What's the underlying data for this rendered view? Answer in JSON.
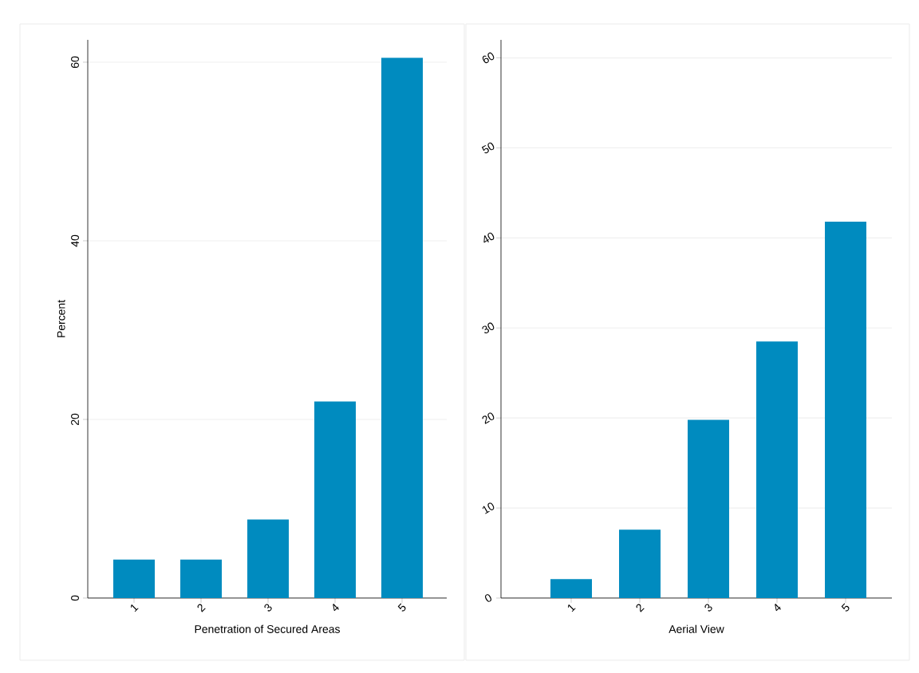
{
  "chart_data": [
    {
      "type": "bar",
      "xlabel": "Penetration of Secured Areas",
      "ylabel": "Percent",
      "categories": [
        "1",
        "2",
        "3",
        "4",
        "5"
      ],
      "values": [
        4.3,
        4.3,
        8.8,
        22.0,
        60.5
      ],
      "color": "#008bbf",
      "ylim": [
        0,
        62.5
      ],
      "yticks": [
        0,
        20,
        40,
        60
      ],
      "grid": "y"
    },
    {
      "type": "bar",
      "xlabel": "Aerial View",
      "categories": [
        "1",
        "2",
        "3",
        "4",
        "5"
      ],
      "values": [
        2.1,
        7.6,
        19.8,
        28.5,
        41.8
      ],
      "color": "#008bbf",
      "ylim": [
        0,
        62
      ],
      "yticks": [
        0,
        10,
        20,
        30,
        40,
        50,
        60
      ],
      "grid": "y"
    }
  ]
}
